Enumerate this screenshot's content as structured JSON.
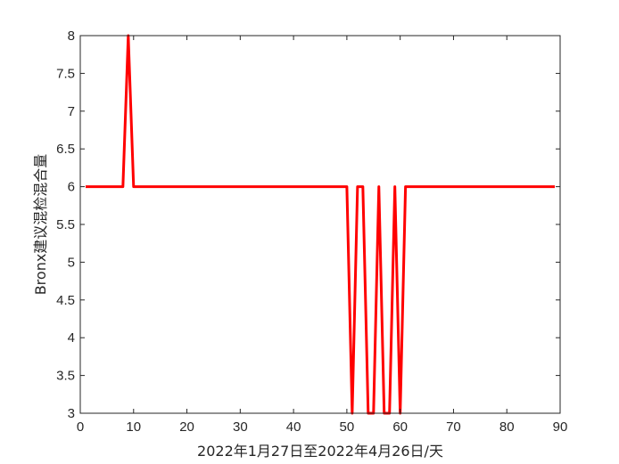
{
  "chart_data": {
    "type": "line",
    "title": "",
    "xlabel": "2022年1月27日至2022年4月26日/天",
    "ylabel": "Bronx建议混检混合量",
    "xlim": [
      0,
      90
    ],
    "ylim": [
      3,
      8
    ],
    "xticks": [
      0,
      10,
      20,
      30,
      40,
      50,
      60,
      70,
      80,
      90
    ],
    "yticks": [
      3,
      3.5,
      4,
      4.5,
      5,
      5.5,
      6,
      6.5,
      7,
      7.5,
      8
    ],
    "grid": false,
    "line_color": "#ff0000",
    "series": [
      {
        "x": [
          1,
          2,
          3,
          4,
          5,
          6,
          7,
          8,
          9,
          10,
          11,
          12,
          13,
          14,
          15,
          16,
          17,
          18,
          19,
          20,
          21,
          22,
          23,
          24,
          25,
          26,
          27,
          28,
          29,
          30,
          31,
          32,
          33,
          34,
          35,
          36,
          37,
          38,
          39,
          40,
          41,
          42,
          43,
          44,
          45,
          46,
          47,
          48,
          49,
          50,
          51,
          52,
          53,
          54,
          55,
          56,
          57,
          58,
          59,
          60,
          61,
          62,
          63,
          64,
          65,
          66,
          67,
          68,
          69,
          70,
          71,
          72,
          73,
          74,
          75,
          76,
          77,
          78,
          79,
          80,
          81,
          82,
          83,
          84,
          85,
          86,
          87,
          88,
          89
        ],
        "y": [
          6,
          6,
          6,
          6,
          6,
          6,
          6,
          6,
          8,
          6,
          6,
          6,
          6,
          6,
          6,
          6,
          6,
          6,
          6,
          6,
          6,
          6,
          6,
          6,
          6,
          6,
          6,
          6,
          6,
          6,
          6,
          6,
          6,
          6,
          6,
          6,
          6,
          6,
          6,
          6,
          6,
          6,
          6,
          6,
          6,
          6,
          6,
          6,
          6,
          6,
          3,
          6,
          6,
          3,
          3,
          6,
          3,
          3,
          6,
          3,
          6,
          6,
          6,
          6,
          6,
          6,
          6,
          6,
          6,
          6,
          6,
          6,
          6,
          6,
          6,
          6,
          6,
          6,
          6,
          6,
          6,
          6,
          6,
          6,
          6,
          6,
          6,
          6,
          6
        ]
      }
    ]
  }
}
